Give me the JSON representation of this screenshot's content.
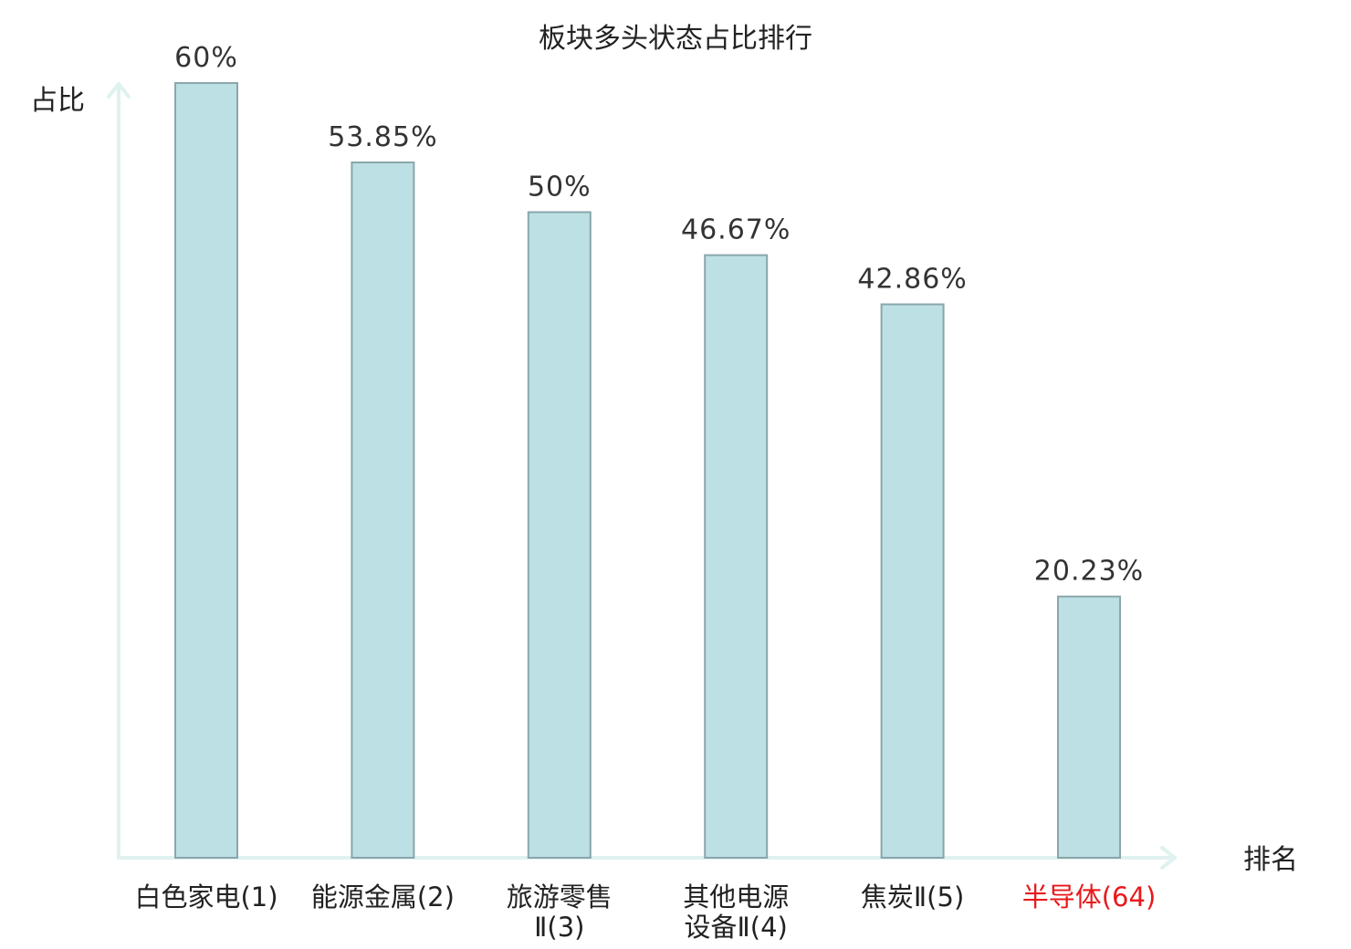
{
  "chart_data": {
    "type": "bar",
    "title": "板块多头状态占比排行",
    "ylabel": "占比",
    "xlabel": "排名",
    "categories": [
      [
        "白色家电(1)"
      ],
      [
        "能源金属(2)"
      ],
      [
        "旅游零售",
        "Ⅱ(3)"
      ],
      [
        "其他电源",
        "设备Ⅱ(4)"
      ],
      [
        "焦炭Ⅱ(5)"
      ],
      [
        "半导体(64)"
      ]
    ],
    "values": [
      60,
      53.85,
      50,
      46.67,
      42.86,
      20.23
    ],
    "value_labels": [
      "60%",
      "53.85%",
      "50%",
      "46.67%",
      "42.86%",
      "20.23%"
    ],
    "highlight_index": 5,
    "ylim": [
      0,
      60
    ],
    "grid": false,
    "colors": {
      "bar_fill": "#bce0e3",
      "bar_stroke": "#8aa6ab",
      "axis": "#e0f2ef",
      "label": "#222222",
      "highlight_label": "#e8181b"
    }
  }
}
